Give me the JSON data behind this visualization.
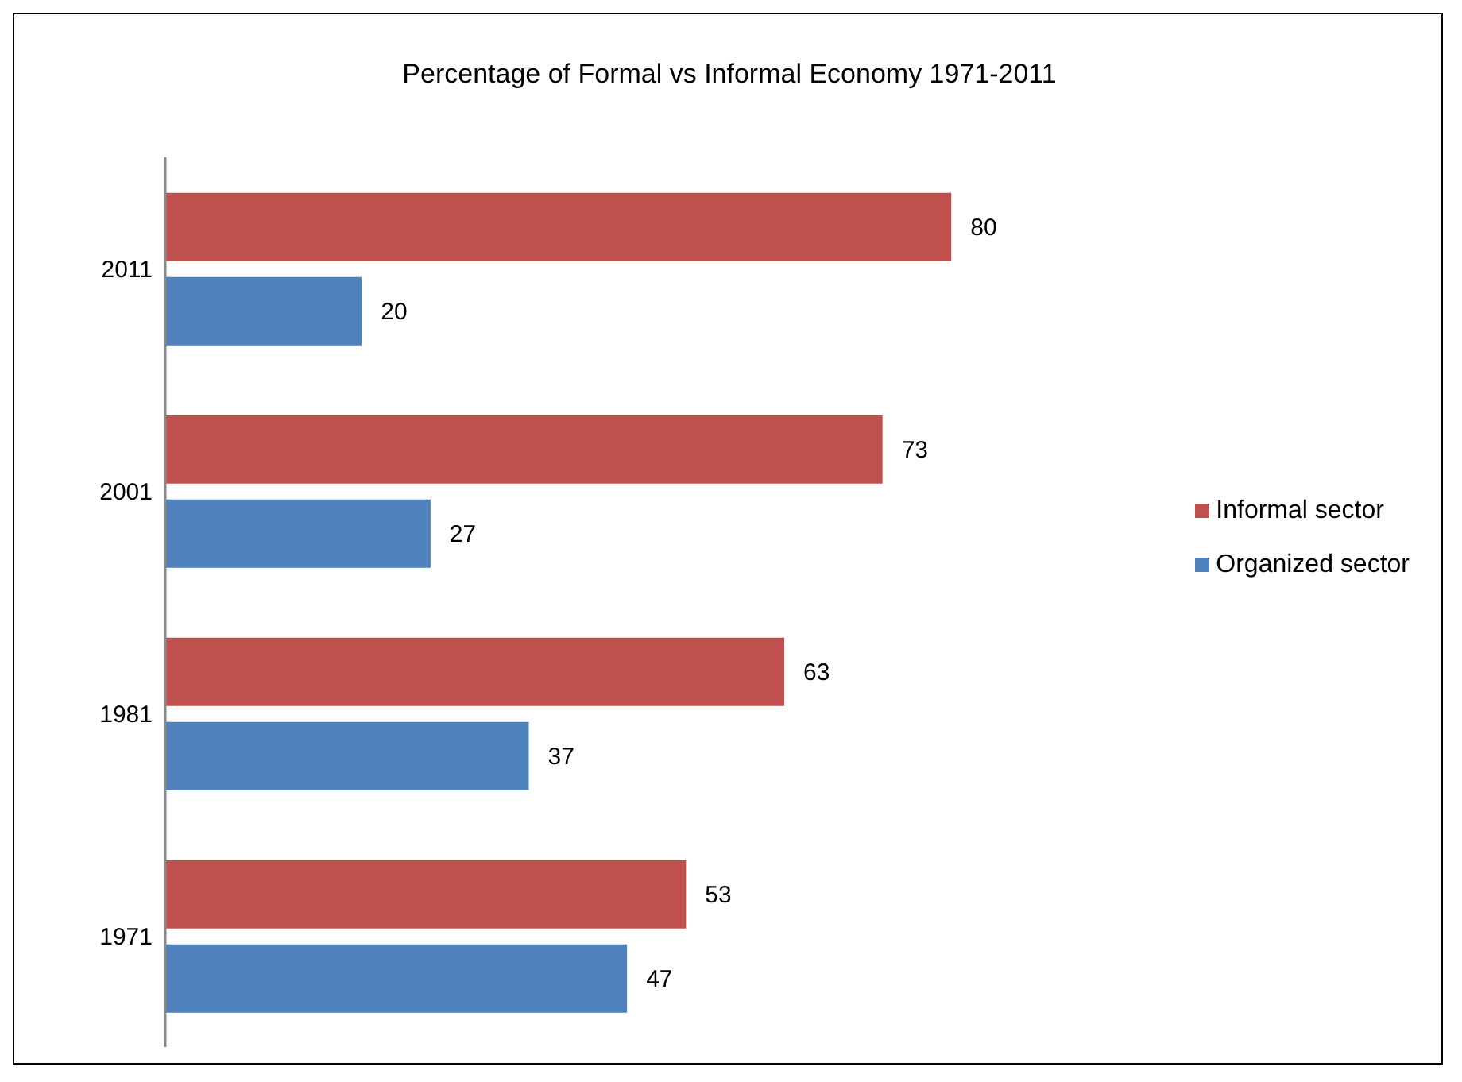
{
  "chart_data": {
    "type": "bar",
    "orientation": "horizontal",
    "title": "Percentage of Formal vs Informal Economy 1971-2011",
    "categories": [
      "2011",
      "2001",
      "1981",
      "1971"
    ],
    "series": [
      {
        "name": "Informal sector",
        "color": "#c0504d",
        "values": [
          80,
          73,
          63,
          53
        ]
      },
      {
        "name": "Organized sector",
        "color": "#4f81bd",
        "values": [
          20,
          27,
          37,
          47
        ]
      }
    ],
    "data_labels": true,
    "grid": false,
    "legend": "right"
  }
}
